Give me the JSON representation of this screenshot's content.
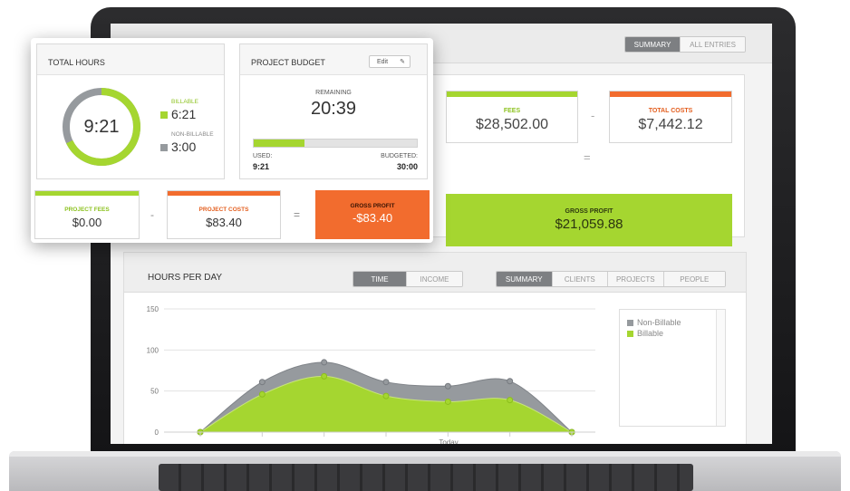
{
  "colors": {
    "accent_green": "#a5d630",
    "accent_orange": "#f26c2e",
    "non_billable_gray": "#969a9e",
    "label_green": "#8cc21f",
    "label_orange": "#e35e1e"
  },
  "topbar": {
    "tabs": [
      {
        "label": "SUMMARY",
        "active": true
      },
      {
        "label": "ALL ENTRIES",
        "active": false
      }
    ]
  },
  "summary": {
    "fees_label": "FEES",
    "fees_value": "$28,502.00",
    "minus": "-",
    "costs_label": "TOTAL COSTS",
    "costs_value": "$7,442.12",
    "equals": "=",
    "gross_label": "GROSS PROFIT",
    "gross_value": "$21,059.88"
  },
  "hours_per_day": {
    "title": "HOURS PER DAY",
    "mode_tabs": [
      {
        "label": "TIME",
        "active": true
      },
      {
        "label": "INCOME",
        "active": false
      }
    ],
    "view_tabs": [
      {
        "label": "SUMMARY",
        "active": true
      },
      {
        "label": "CLIENTS",
        "active": false
      },
      {
        "label": "PROJECTS",
        "active": false
      },
      {
        "label": "PEOPLE",
        "active": false
      }
    ],
    "legend": [
      {
        "name": "Non-Billable",
        "color": "#969a9e"
      },
      {
        "name": "Billable",
        "color": "#a5d630"
      }
    ]
  },
  "chart_data": {
    "type": "area",
    "title": "HOURS PER DAY",
    "xlabel": "Today",
    "ylabel": "",
    "y_ticks": [
      0,
      50,
      100,
      150
    ],
    "ylim": [
      0,
      150
    ],
    "x": [
      0,
      1,
      2,
      3,
      4,
      5,
      6
    ],
    "series": [
      {
        "name": "Billable",
        "values": [
          0,
          46,
          68,
          44,
          37,
          39,
          0
        ]
      },
      {
        "name": "Non-Billable",
        "values": [
          0,
          61,
          85,
          61,
          56,
          62,
          0
        ]
      }
    ],
    "legend_position": "right",
    "grid": true
  },
  "widget": {
    "total_hours": {
      "title": "TOTAL HOURS",
      "total": "9:21",
      "billable_label": "BILLABLE",
      "billable_value": "6:21",
      "billable_fraction": 0.679,
      "non_billable_label": "NON-BILLABLE",
      "non_billable_value": "3:00"
    },
    "project_budget": {
      "title": "PROJECT BUDGET",
      "edit_label": "Edit",
      "remaining_label": "REMAINING",
      "remaining_value": "20:39",
      "used_fraction": 0.312,
      "used_label": "USED:",
      "used_value": "9:21",
      "budgeted_label": "BUDGETED:",
      "budgeted_value": "30:00"
    },
    "project_fees_label": "PROJECT FEES",
    "project_fees_value": "$0.00",
    "minus": "-",
    "project_costs_label": "PROJECT COSTS",
    "project_costs_value": "$83.40",
    "equals": "=",
    "gross_profit_label": "GROSS PROFIT",
    "gross_profit_value": "-$83.40"
  }
}
